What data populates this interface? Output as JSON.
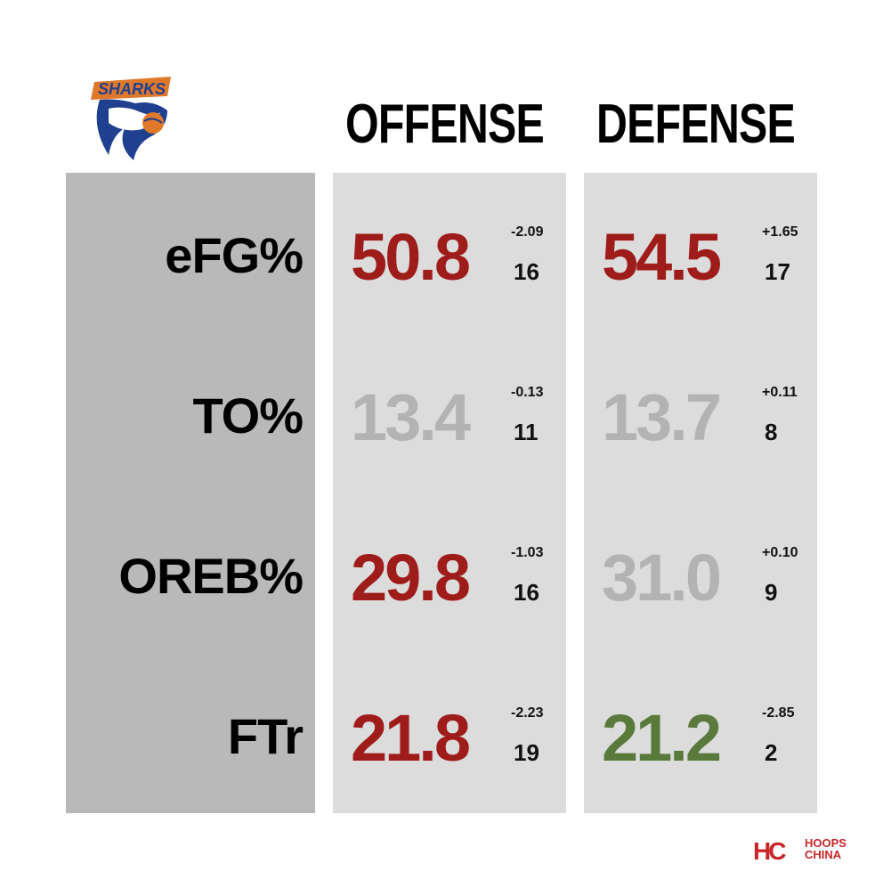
{
  "header": {
    "offense_label": "OFFENSE",
    "defense_label": "DEFENSE"
  },
  "logo": {
    "text": "SHARKS",
    "icon": "shark-team-logo"
  },
  "brand": {
    "mark": "HC",
    "line1": "HOOPS",
    "line2": "CHINA"
  },
  "colors": {
    "bad": "#9e1c1a",
    "neutral": "#b3b3b3",
    "good": "#5a7a3c"
  },
  "rows": [
    {
      "metric": "eFG%",
      "offense": {
        "value": "50.8",
        "diff": "-2.09",
        "rank": "16",
        "tone": "bad"
      },
      "defense": {
        "value": "54.5",
        "diff": "+1.65",
        "rank": "17",
        "tone": "bad"
      }
    },
    {
      "metric": "TO%",
      "offense": {
        "value": "13.4",
        "diff": "-0.13",
        "rank": "11",
        "tone": "neutral"
      },
      "defense": {
        "value": "13.7",
        "diff": "+0.11",
        "rank": "8",
        "tone": "neutral"
      }
    },
    {
      "metric": "OREB%",
      "offense": {
        "value": "29.8",
        "diff": "-1.03",
        "rank": "16",
        "tone": "bad"
      },
      "defense": {
        "value": "31.0",
        "diff": "+0.10",
        "rank": "9",
        "tone": "neutral"
      }
    },
    {
      "metric": "FTr",
      "offense": {
        "value": "21.8",
        "diff": "-2.23",
        "rank": "19",
        "tone": "bad"
      },
      "defense": {
        "value": "21.2",
        "diff": "-2.85",
        "rank": "2",
        "tone": "good"
      }
    }
  ],
  "chart_data": {
    "type": "table",
    "columns": [
      "OFFENSE",
      "DEFENSE"
    ],
    "categories": [
      "eFG%",
      "TO%",
      "OREB%",
      "FTr"
    ],
    "series": [
      {
        "name": "OFFENSE",
        "values": [
          50.8,
          13.4,
          29.8,
          21.8
        ],
        "diffs": [
          -2.09,
          -0.13,
          -1.03,
          -2.23
        ],
        "ranks": [
          16,
          11,
          16,
          19
        ]
      },
      {
        "name": "DEFENSE",
        "values": [
          54.5,
          13.7,
          31.0,
          21.2
        ],
        "diffs": [
          1.65,
          0.11,
          0.1,
          -2.85
        ],
        "ranks": [
          17,
          8,
          9,
          2
        ]
      }
    ]
  }
}
